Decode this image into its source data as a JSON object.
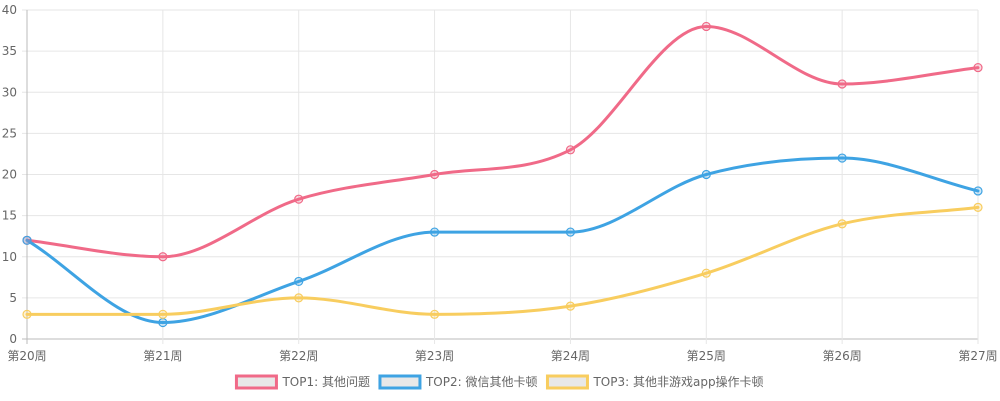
{
  "chart_data": {
    "type": "line",
    "title": "",
    "xlabel": "",
    "ylabel": "",
    "categories": [
      "第20周",
      "第21周",
      "第22周",
      "第23周",
      "第24周",
      "第25周",
      "第26周",
      "第27周"
    ],
    "ylim": [
      0,
      40
    ],
    "yticks": [
      "0",
      "5",
      "10",
      "15",
      "20",
      "25",
      "30",
      "35",
      "40"
    ],
    "grid": true,
    "legend_position": "bottom",
    "smooth": true,
    "series": [
      {
        "name": "TOP1: 其他问题",
        "color": "#f06a88",
        "values": [
          12,
          10,
          17,
          20,
          23,
          38,
          31,
          33
        ]
      },
      {
        "name": "TOP2: 微信其他卡顿",
        "color": "#3ea3e3",
        "values": [
          12,
          2,
          7,
          13,
          13,
          20,
          22,
          18
        ]
      },
      {
        "name": "TOP3: 其他非游戏app操作卡顿",
        "color": "#f8cd5f",
        "values": [
          3,
          3,
          5,
          3,
          4,
          8,
          14,
          16
        ]
      }
    ]
  }
}
